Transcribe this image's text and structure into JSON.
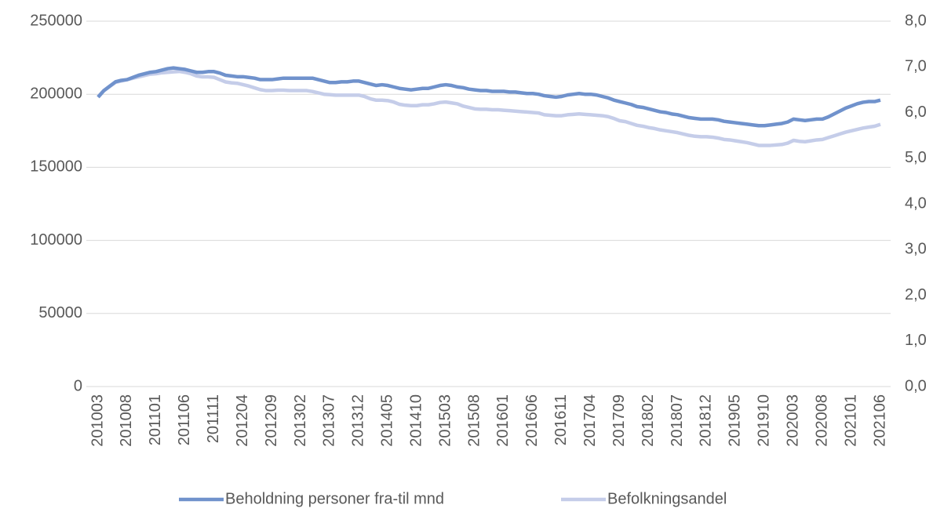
{
  "chart_data": {
    "type": "line",
    "categories": [
      "201003",
      null,
      null,
      null,
      null,
      "201008",
      null,
      null,
      null,
      null,
      "201101",
      null,
      null,
      null,
      null,
      "201106",
      null,
      null,
      null,
      null,
      "201111",
      null,
      null,
      null,
      null,
      "201204",
      null,
      null,
      null,
      null,
      "201209",
      null,
      null,
      null,
      null,
      "201302",
      null,
      null,
      null,
      null,
      "201307",
      null,
      null,
      null,
      null,
      "201312",
      null,
      null,
      null,
      null,
      "201405",
      null,
      null,
      null,
      null,
      "201410",
      null,
      null,
      null,
      null,
      "201503",
      null,
      null,
      null,
      null,
      "201508",
      null,
      null,
      null,
      null,
      "201601",
      null,
      null,
      null,
      null,
      "201606",
      null,
      null,
      null,
      null,
      "201611",
      null,
      null,
      null,
      null,
      "201704",
      null,
      null,
      null,
      null,
      "201709",
      null,
      null,
      null,
      null,
      "201802",
      null,
      null,
      null,
      null,
      "201807",
      null,
      null,
      null,
      null,
      "201812",
      null,
      null,
      null,
      null,
      "201905",
      null,
      null,
      null,
      null,
      "201910",
      null,
      null,
      null,
      null,
      "202003",
      null,
      null,
      null,
      null,
      "202008",
      null,
      null,
      null,
      null,
      "202101",
      null,
      null,
      null,
      null,
      "202106"
    ],
    "series": [
      {
        "name": "Beholdning personer fra-til mnd",
        "color": "#7092cc",
        "values": [
          198000,
          202500,
          205500,
          208500,
          209500,
          210000,
          211500,
          213000,
          214000,
          215000,
          215500,
          216500,
          217500,
          218000,
          217500,
          217000,
          216000,
          215000,
          215000,
          215500,
          215500,
          214500,
          213000,
          212500,
          212000,
          212000,
          211500,
          211000,
          210000,
          210000,
          210000,
          210500,
          211000,
          211000,
          211000,
          211000,
          211000,
          211000,
          210000,
          209000,
          208000,
          208000,
          208500,
          208500,
          209000,
          209000,
          208000,
          207000,
          206000,
          206500,
          206000,
          205000,
          204000,
          203500,
          203000,
          203500,
          204000,
          204000,
          205000,
          206000,
          206500,
          206000,
          205000,
          204500,
          203500,
          203000,
          202500,
          202500,
          202000,
          202000,
          202000,
          201500,
          201500,
          201000,
          200500,
          200500,
          200000,
          199000,
          198500,
          198000,
          198500,
          199500,
          200000,
          200500,
          200000,
          200000,
          199500,
          198500,
          197500,
          196000,
          195000,
          194000,
          193000,
          191500,
          191000,
          190000,
          189000,
          188000,
          187500,
          186500,
          186000,
          185000,
          184000,
          183500,
          183000,
          183000,
          183000,
          182500,
          181500,
          181000,
          180500,
          180000,
          179500,
          179000,
          178500,
          178500,
          179000,
          179500,
          180000,
          181000,
          183000,
          182500,
          182000,
          182500,
          183000,
          183000,
          184500,
          186500,
          188500,
          190500,
          192000,
          193500,
          194500,
          195000,
          195000,
          196000
        ]
      },
      {
        "name": "Befolkningsandel",
        "color": "#c5cde9",
        "axis": "y2",
        "values": [
          6.35,
          6.48,
          6.57,
          6.66,
          6.69,
          6.72,
          6.75,
          6.78,
          6.81,
          6.84,
          6.85,
          6.87,
          6.88,
          6.89,
          6.9,
          6.88,
          6.85,
          6.8,
          6.78,
          6.78,
          6.77,
          6.72,
          6.67,
          6.65,
          6.64,
          6.61,
          6.58,
          6.54,
          6.5,
          6.48,
          6.48,
          6.49,
          6.49,
          6.48,
          6.48,
          6.48,
          6.48,
          6.46,
          6.43,
          6.4,
          6.39,
          6.38,
          6.38,
          6.38,
          6.38,
          6.38,
          6.35,
          6.3,
          6.27,
          6.27,
          6.26,
          6.23,
          6.18,
          6.16,
          6.15,
          6.15,
          6.17,
          6.17,
          6.19,
          6.22,
          6.23,
          6.21,
          6.19,
          6.14,
          6.11,
          6.08,
          6.07,
          6.07,
          6.06,
          6.06,
          6.05,
          6.04,
          6.03,
          6.02,
          6.01,
          6.0,
          5.99,
          5.95,
          5.94,
          5.93,
          5.93,
          5.95,
          5.96,
          5.97,
          5.96,
          5.95,
          5.94,
          5.93,
          5.91,
          5.87,
          5.82,
          5.8,
          5.76,
          5.72,
          5.7,
          5.67,
          5.65,
          5.62,
          5.6,
          5.58,
          5.56,
          5.53,
          5.5,
          5.48,
          5.47,
          5.47,
          5.46,
          5.44,
          5.41,
          5.4,
          5.38,
          5.36,
          5.34,
          5.31,
          5.28,
          5.28,
          5.28,
          5.29,
          5.3,
          5.33,
          5.39,
          5.37,
          5.36,
          5.38,
          5.4,
          5.41,
          5.45,
          5.49,
          5.53,
          5.57,
          5.6,
          5.63,
          5.66,
          5.68,
          5.7,
          5.74
        ]
      }
    ],
    "ylim": [
      0,
      250000
    ],
    "yticks": [
      0,
      50000,
      100000,
      150000,
      200000,
      250000
    ],
    "y2lim": [
      0,
      8
    ],
    "y2ticks": [
      {
        "value": 0,
        "label": "0,0"
      },
      {
        "value": 1,
        "label": "1,0"
      },
      {
        "value": 2,
        "label": "2,0"
      },
      {
        "value": 3,
        "label": "3,0"
      },
      {
        "value": 4,
        "label": "4,0"
      },
      {
        "value": 5,
        "label": "5,0"
      },
      {
        "value": 6,
        "label": "6,0"
      },
      {
        "value": 7,
        "label": "7,0"
      },
      {
        "value": 8,
        "label": "8,0"
      }
    ],
    "grid": true,
    "legend": "bottom"
  }
}
